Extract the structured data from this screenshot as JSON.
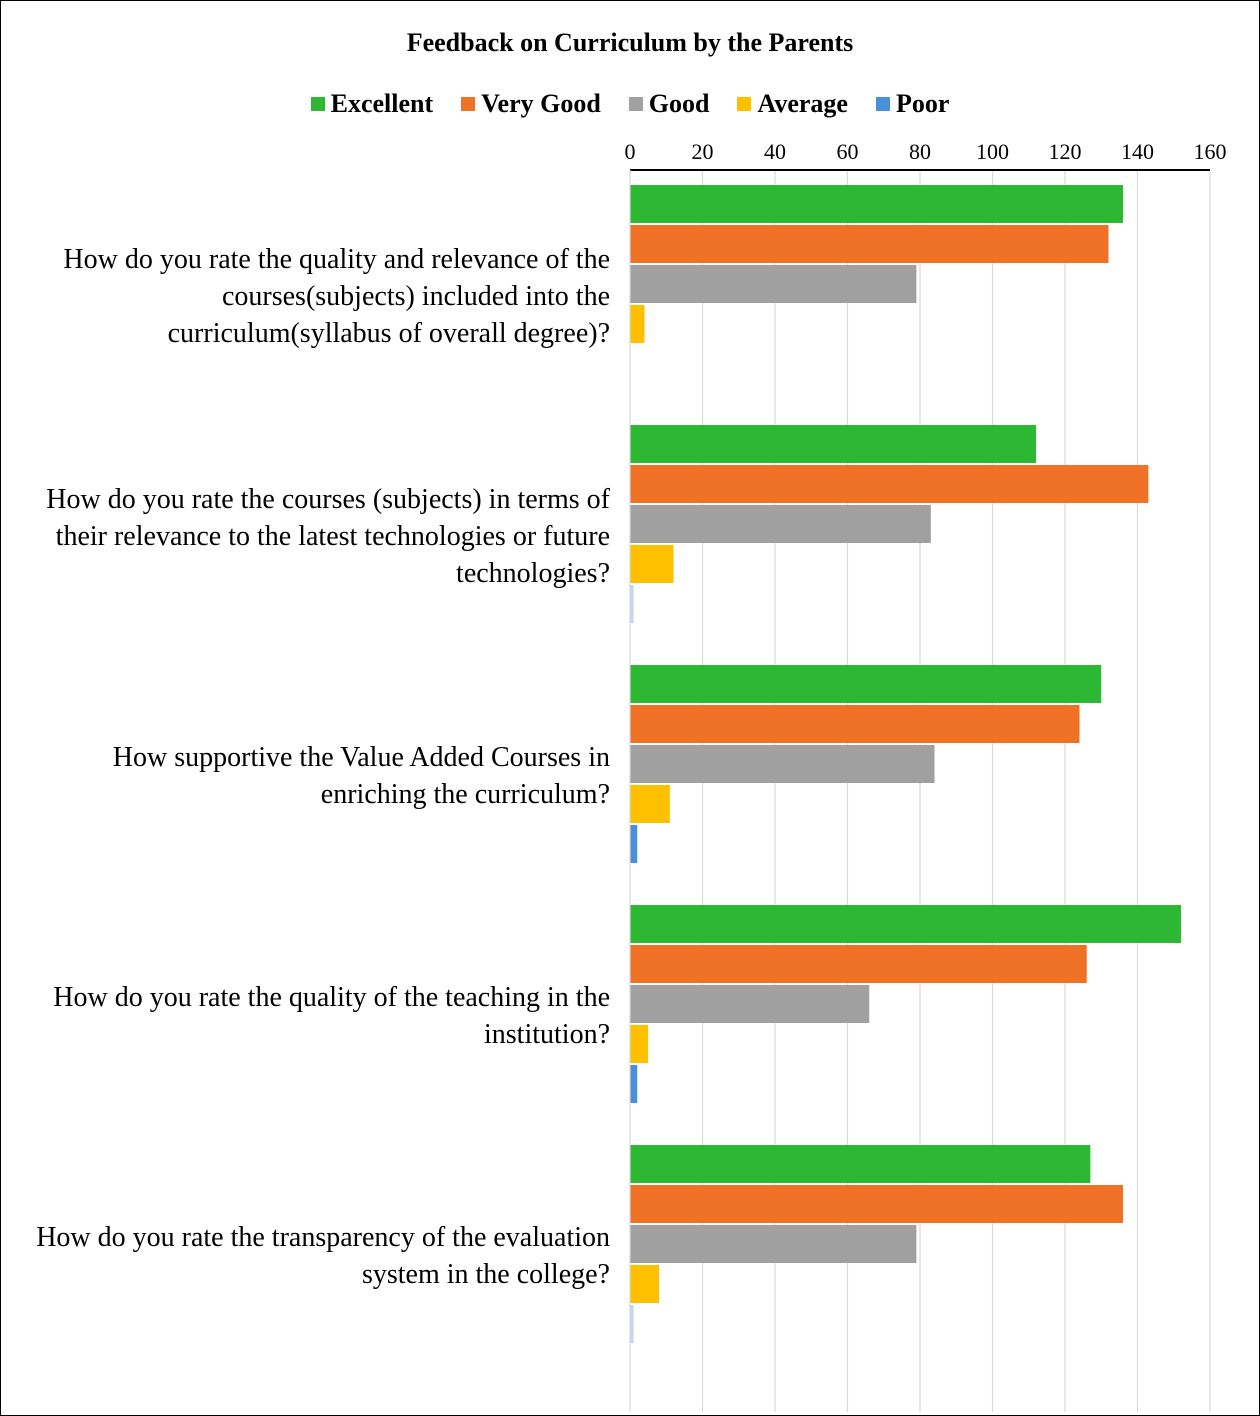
{
  "chart_data": {
    "type": "bar",
    "orientation": "horizontal",
    "title": "Feedback on  Curriculum by the Parents",
    "legend_position": "top",
    "grid": true,
    "xlim": [
      0,
      160
    ],
    "ticks": [
      "0",
      "20",
      "40",
      "60",
      "80",
      "100",
      "120",
      "140",
      "160"
    ],
    "categories": [
      "How do you rate the quality and relevance of the courses(subjects) included into the curriculum(syllabus of overall degree)?",
      "How do you rate the courses (subjects) in terms of their relevance to the latest technologies or future technologies?",
      "How supportive the Value Added Courses in enriching the curriculum?",
      "How do you rate the quality of the teaching in the institution?",
      "How do you rate the transparency of the evaluation system in the college?"
    ],
    "series": [
      {
        "name": "Excellent",
        "color": "#2DB833",
        "values": [
          136,
          112,
          130,
          152,
          127
        ]
      },
      {
        "name": "Very Good",
        "color": "#EE7125",
        "values": [
          132,
          143,
          124,
          126,
          136
        ]
      },
      {
        "name": "Good",
        "color": "#A0A0A0",
        "values": [
          79,
          83,
          84,
          66,
          79
        ]
      },
      {
        "name": "Average",
        "color": "#FFC000",
        "values": [
          4,
          12,
          11,
          5,
          8
        ]
      },
      {
        "name": "Poor",
        "color": "#4A90D9",
        "values": [
          0,
          1,
          2,
          2,
          1
        ]
      }
    ]
  }
}
